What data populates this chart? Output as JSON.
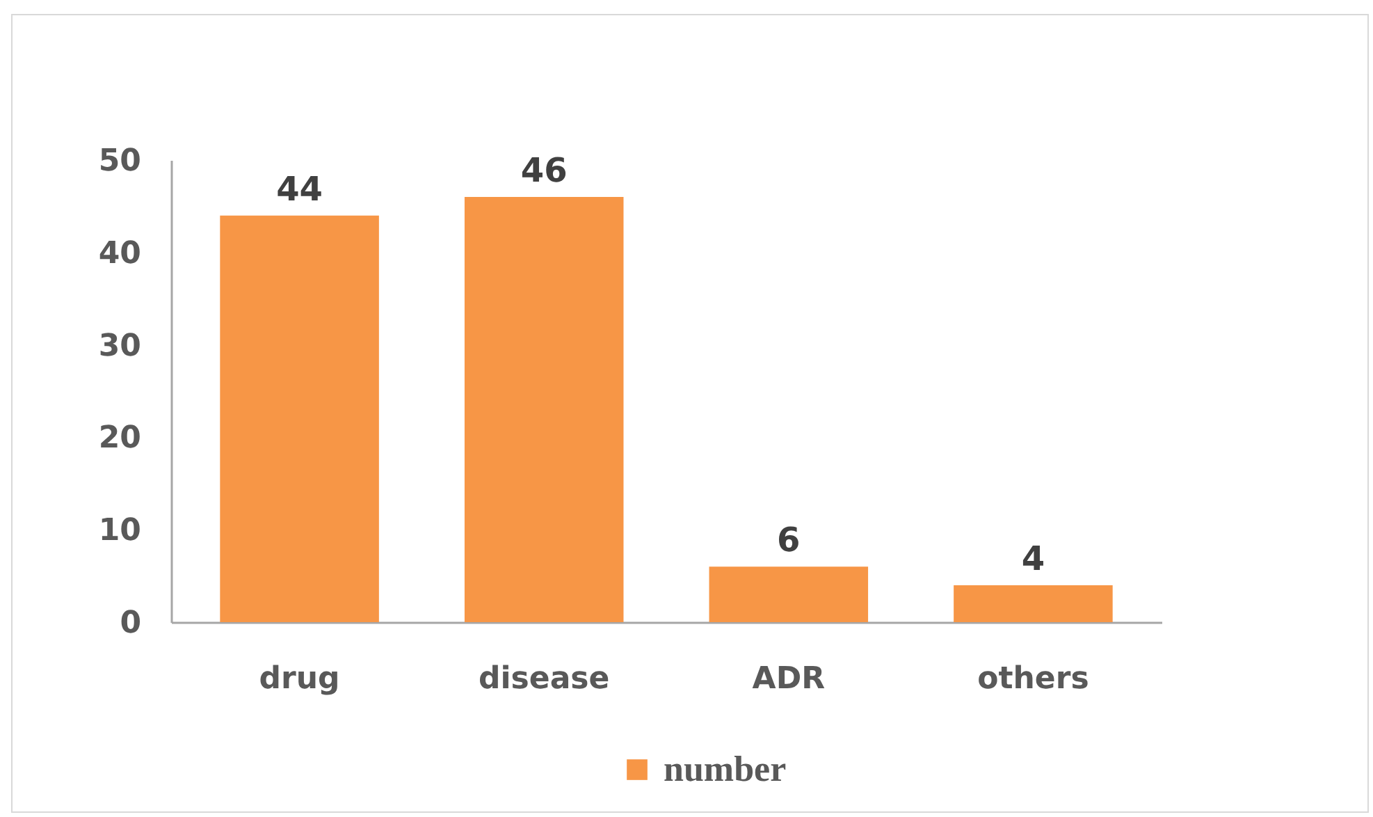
{
  "chart_data": {
    "type": "bar",
    "categories": [
      "drug",
      "disease",
      "ADR",
      "others"
    ],
    "series": [
      {
        "name": "number",
        "color": "#f79646",
        "values": [
          44,
          46,
          6,
          4
        ]
      }
    ],
    "ylim": [
      0,
      50
    ],
    "yticks": [
      0,
      10,
      20,
      30,
      40,
      50
    ],
    "data_labels": true,
    "legend": "bottom"
  }
}
